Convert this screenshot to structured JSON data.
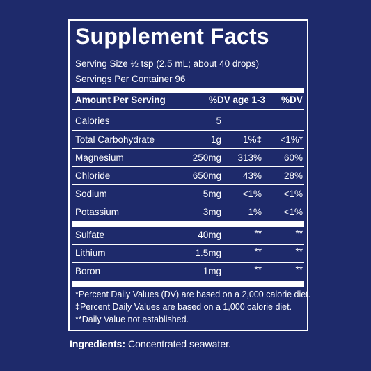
{
  "title": "Supplement Facts",
  "serving_size": "Serving Size ½ tsp (2.5 mL; about 40 drops)",
  "servings_per_container": "Servings Per Container 96",
  "header": {
    "amount": "Amount Per Serving",
    "dv_age": "%DV age 1-3",
    "dv": "%DV"
  },
  "rows": [
    {
      "name": "Calories",
      "amount": "5",
      "dv_age": "",
      "dv": ""
    },
    {
      "name": "Total Carbohydrate",
      "amount": "1g",
      "dv_age": "1%‡",
      "dv": "<1%*"
    },
    {
      "name": "Magnesium",
      "amount": "250mg",
      "dv_age": "313%",
      "dv": "60%"
    },
    {
      "name": "Chloride",
      "amount": "650mg",
      "dv_age": "43%",
      "dv": "28%"
    },
    {
      "name": "Sodium",
      "amount": "5mg",
      "dv_age": "<1%",
      "dv": "<1%"
    },
    {
      "name": "Potassium",
      "amount": "3mg",
      "dv_age": "1%",
      "dv": "<1%"
    },
    {
      "name": "Sulfate",
      "amount": "40mg",
      "dv_age": "**",
      "dv": "**"
    },
    {
      "name": "Lithium",
      "amount": "1.5mg",
      "dv_age": "**",
      "dv": "**"
    },
    {
      "name": "Boron",
      "amount": "1mg",
      "dv_age": "**",
      "dv": "**"
    }
  ],
  "footnotes": [
    "*Percent Daily Values (DV) are based on a 2,000 calorie diet.",
    "‡Percent Daily Values are based on a 1,000 calorie diet.",
    "**Daily Value not established."
  ],
  "ingredients": {
    "label": "Ingredients:",
    "text": " Concentrated seawater."
  },
  "colors": {
    "background": "#1e2a6b",
    "text": "#ffffff"
  }
}
